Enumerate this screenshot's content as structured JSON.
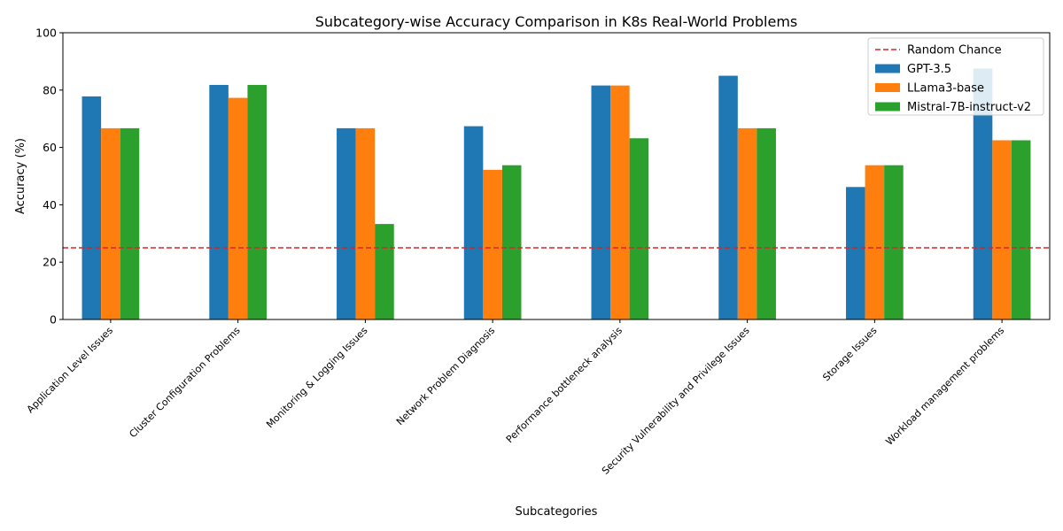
{
  "chart_data": {
    "type": "bar",
    "title": "Subcategory-wise Accuracy Comparison in K8s Real-World Problems",
    "xlabel": "Subcategories",
    "ylabel": "Accuracy (%)",
    "ylim": [
      0,
      100
    ],
    "yticks": [
      "0",
      "20",
      "40",
      "60",
      "80",
      "100"
    ],
    "grid": false,
    "legend_position": "top-right",
    "categories": [
      "Application Level Issues",
      "Cluster Configuration Problems",
      "Monitoring & Logging Issues",
      "Network Problem Diagnosis",
      "Performance bottleneck analysis",
      "Security Vulnerability and Privilege Issues",
      "Storage Issues",
      "Workload management problems"
    ],
    "series": [
      {
        "name": "GPT-3.5",
        "color": "#1f77b4",
        "values": [
          77.8,
          81.8,
          66.7,
          67.4,
          81.6,
          85.0,
          46.2,
          87.5
        ]
      },
      {
        "name": "LLama3-base",
        "color": "#ff7f0e",
        "values": [
          66.7,
          77.3,
          66.7,
          52.2,
          81.6,
          66.7,
          53.8,
          62.5
        ]
      },
      {
        "name": "Mistral-7B-instruct-v2",
        "color": "#2ca02c",
        "values": [
          66.7,
          81.8,
          33.3,
          53.8,
          63.2,
          66.7,
          53.8,
          62.5
        ]
      }
    ],
    "reference_line": {
      "name": "Random Chance",
      "value": 25,
      "color": "#d62728",
      "style": "dashed"
    }
  }
}
